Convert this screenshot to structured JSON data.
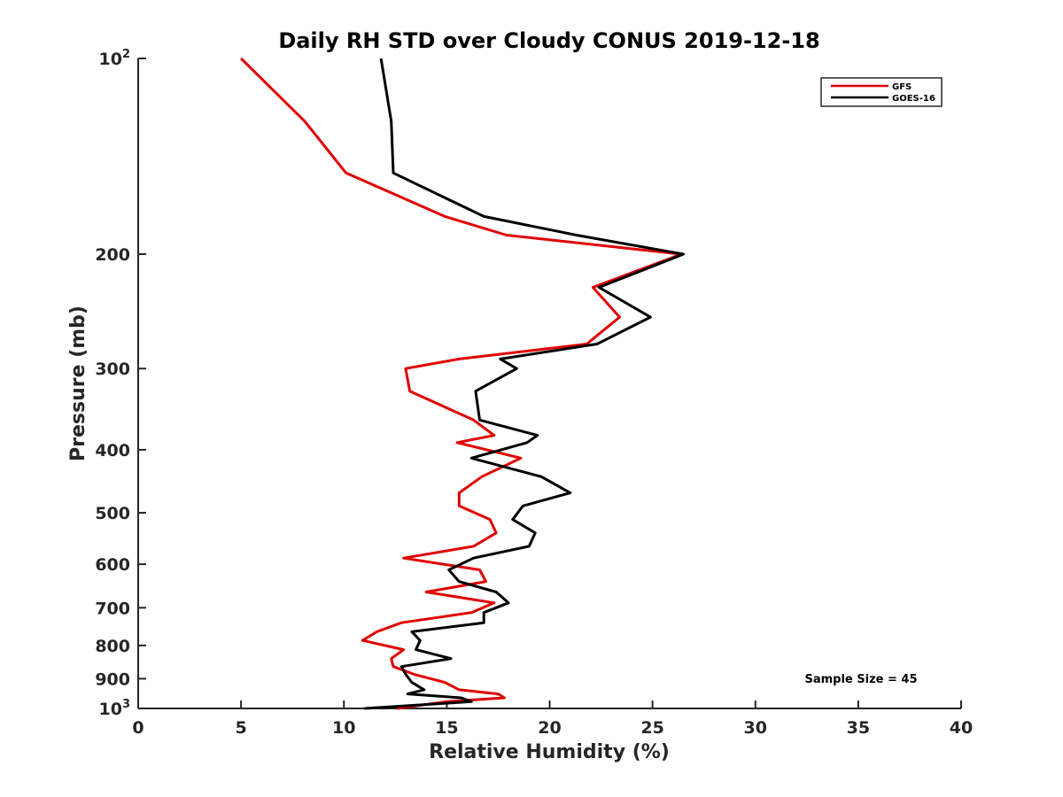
{
  "chart_data": {
    "type": "line",
    "title": "Daily RH STD over Cloudy CONUS 2019-12-18",
    "xlabel": "Relative Humidity (%)",
    "ylabel": "Pressure (mb)",
    "xlim": [
      0,
      40
    ],
    "ylim": [
      100,
      1000
    ],
    "y_scale": "log",
    "y_reversed": true,
    "x_ticks": [
      "0",
      "5",
      "10",
      "15",
      "20",
      "25",
      "30",
      "35",
      "40"
    ],
    "y_ticks": [
      {
        "value": 100,
        "base": "10",
        "exp": "2"
      },
      {
        "value": 200,
        "label": "200"
      },
      {
        "value": 300,
        "label": "300"
      },
      {
        "value": 400,
        "label": "400"
      },
      {
        "value": 500,
        "label": "500"
      },
      {
        "value": 600,
        "label": "600"
      },
      {
        "value": 700,
        "label": "700"
      },
      {
        "value": 800,
        "label": "800"
      },
      {
        "value": 900,
        "label": "900"
      },
      {
        "value": 1000,
        "base": "10",
        "exp": "3"
      }
    ],
    "legend_position": "top-right",
    "annotation": "Sample Size = 45",
    "series": [
      {
        "name": "GFS",
        "color": "#e00000",
        "points": [
          [
            5.0,
            100
          ],
          [
            8.1,
            125
          ],
          [
            10.1,
            150
          ],
          [
            14.9,
            175
          ],
          [
            17.9,
            187
          ],
          [
            26.4,
            200
          ],
          [
            22.1,
            225
          ],
          [
            23.4,
            250
          ],
          [
            21.8,
            275
          ],
          [
            15.6,
            290
          ],
          [
            13.0,
            300
          ],
          [
            13.2,
            325
          ],
          [
            16.3,
            360
          ],
          [
            17.3,
            380
          ],
          [
            15.5,
            390
          ],
          [
            18.6,
            412
          ],
          [
            16.7,
            440
          ],
          [
            15.6,
            466
          ],
          [
            15.6,
            488
          ],
          [
            17.1,
            512
          ],
          [
            17.4,
            537
          ],
          [
            16.3,
            563
          ],
          [
            12.9,
            587
          ],
          [
            16.6,
            612
          ],
          [
            16.9,
            638
          ],
          [
            14.0,
            662
          ],
          [
            17.3,
            688
          ],
          [
            16.2,
            712
          ],
          [
            12.8,
            738
          ],
          [
            11.6,
            762
          ],
          [
            10.9,
            786
          ],
          [
            12.9,
            812
          ],
          [
            12.3,
            838
          ],
          [
            12.4,
            862
          ],
          [
            13.4,
            886
          ],
          [
            14.9,
            912
          ],
          [
            15.6,
            936
          ],
          [
            17.5,
            950
          ],
          [
            17.8,
            963
          ],
          [
            15.0,
            976
          ],
          [
            12.6,
            1000
          ]
        ]
      },
      {
        "name": "GOES-16",
        "color": "#000000",
        "points": [
          [
            11.8,
            100
          ],
          [
            12.3,
            125
          ],
          [
            12.4,
            150
          ],
          [
            16.8,
            175
          ],
          [
            21.3,
            187
          ],
          [
            26.5,
            200
          ],
          [
            22.4,
            225
          ],
          [
            24.9,
            250
          ],
          [
            22.3,
            275
          ],
          [
            17.6,
            290
          ],
          [
            18.4,
            300
          ],
          [
            16.4,
            325
          ],
          [
            16.6,
            360
          ],
          [
            19.4,
            380
          ],
          [
            18.9,
            390
          ],
          [
            16.2,
            412
          ],
          [
            19.6,
            440
          ],
          [
            21.0,
            466
          ],
          [
            18.7,
            488
          ],
          [
            18.2,
            512
          ],
          [
            19.3,
            537
          ],
          [
            19.0,
            563
          ],
          [
            16.3,
            587
          ],
          [
            15.1,
            612
          ],
          [
            15.6,
            638
          ],
          [
            17.4,
            662
          ],
          [
            18.0,
            688
          ],
          [
            16.8,
            712
          ],
          [
            16.8,
            738
          ],
          [
            13.3,
            762
          ],
          [
            13.7,
            786
          ],
          [
            13.5,
            812
          ],
          [
            15.2,
            838
          ],
          [
            12.8,
            862
          ],
          [
            13.0,
            886
          ],
          [
            13.3,
            912
          ],
          [
            13.9,
            936
          ],
          [
            13.1,
            950
          ],
          [
            15.7,
            963
          ],
          [
            16.2,
            976
          ],
          [
            11.0,
            1000
          ]
        ]
      }
    ]
  }
}
